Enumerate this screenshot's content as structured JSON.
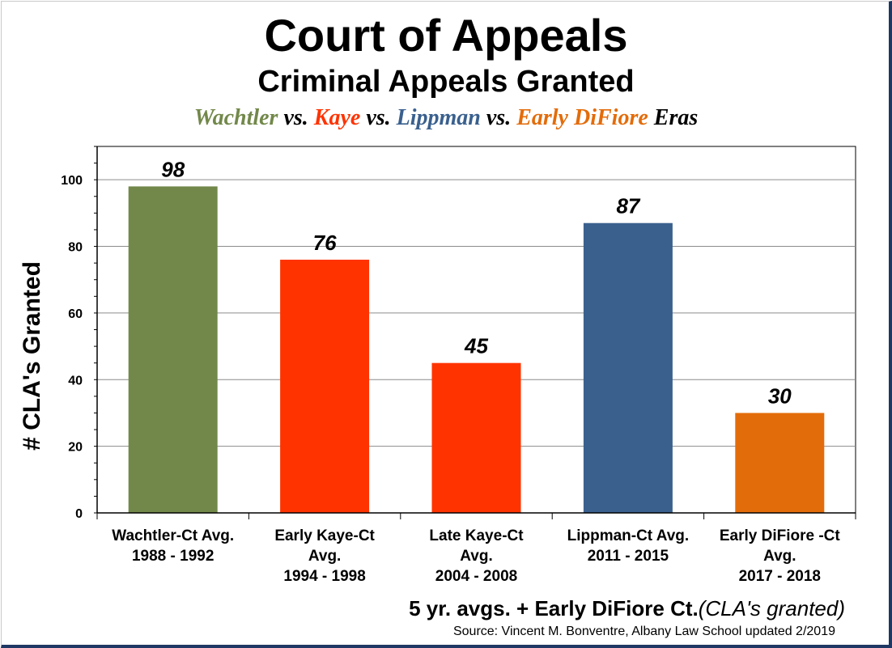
{
  "title": "Court of Appeals",
  "subtitle": "Criminal Appeals Granted",
  "eras": {
    "wachtler": "Wachtler",
    "vs1": " vs. ",
    "kaye": "Kaye",
    "vs2": " vs. ",
    "lippman": "Lippman",
    "vs3": " vs. ",
    "difiore": "Early DiFiore",
    "suffix": " Eras"
  },
  "footer": {
    "main": "5 yr. avgs. + Early DiFiore Ct.",
    "paren": "(CLA's granted)",
    "source": "Source: Vincent M. Bonventre, Albany Law School  updated 2/2019"
  },
  "colors": {
    "wachtler": "#72884a",
    "kaye": "#ff3300",
    "lippman": "#3a608e",
    "difiore": "#e36c0a"
  },
  "chart_data": {
    "type": "bar",
    "title": "Court of Appeals",
    "subtitle": "Criminal Appeals Granted",
    "ylabel": "# CLA's Granted",
    "xlabel": "",
    "ylim": [
      0,
      110
    ],
    "yticks": [
      0,
      20,
      40,
      60,
      80,
      100
    ],
    "grid": true,
    "categories": [
      [
        "Wachtler-Ct Avg.",
        "1988 - 1992"
      ],
      [
        "Early Kaye-Ct",
        "Avg.",
        "1994 - 1998"
      ],
      [
        "Late Kaye-Ct",
        "Avg.",
        "2004 - 2008"
      ],
      [
        "Lippman-Ct Avg.",
        "2011 - 2015"
      ],
      [
        "Early DiFiore -Ct",
        "Avg.",
        "2017 - 2018"
      ]
    ],
    "values": [
      98,
      76,
      45,
      87,
      30
    ],
    "bar_colors": [
      "#72884a",
      "#ff3300",
      "#ff3300",
      "#3a608e",
      "#e36c0a"
    ]
  }
}
